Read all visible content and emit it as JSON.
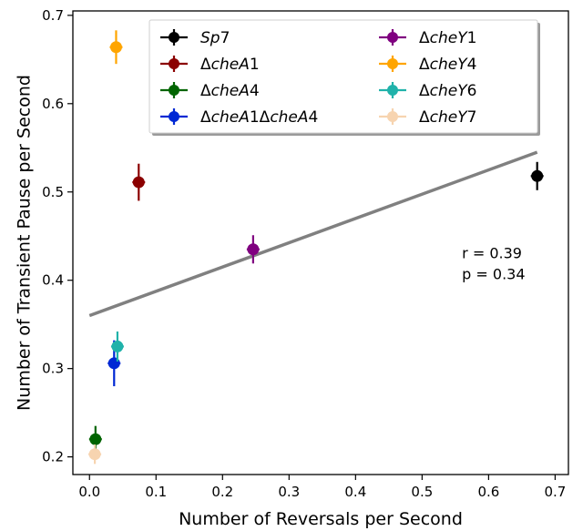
{
  "chart_data": {
    "type": "scatter",
    "xlabel": "Number of Reversals per Second",
    "ylabel": "Number of Transient Pause per Second",
    "xlim": [
      -0.025,
      0.72
    ],
    "ylim": [
      0.18,
      0.705
    ],
    "xticks": [
      0.0,
      0.1,
      0.2,
      0.3,
      0.4,
      0.5,
      0.6,
      0.7
    ],
    "xtick_labels": [
      "0.0",
      "0.1",
      "0.2",
      "0.3",
      "0.4",
      "0.5",
      "0.6",
      "0.7"
    ],
    "yticks": [
      0.2,
      0.3,
      0.4,
      0.5,
      0.6,
      0.7
    ],
    "ytick_labels": [
      "0.2",
      "0.3",
      "0.4",
      "0.5",
      "0.6",
      "0.7"
    ],
    "grid": false,
    "legend_position": "top",
    "series": [
      {
        "id": "sp7",
        "label_parts": [
          {
            "t": "Sp",
            "i": true
          },
          {
            "t": "7",
            "i": false
          }
        ],
        "color": "#000000",
        "x": 0.673,
        "y": 0.518,
        "xerr": 0.008,
        "yerr": 0.016
      },
      {
        "id": "chea1",
        "label_parts": [
          {
            "t": "Δ",
            "i": false
          },
          {
            "t": "cheA",
            "i": true
          },
          {
            "t": "1",
            "i": false
          }
        ],
        "color": "#8b0000",
        "x": 0.074,
        "y": 0.511,
        "xerr": 0.005,
        "yerr": 0.021
      },
      {
        "id": "chea4",
        "label_parts": [
          {
            "t": "Δ",
            "i": false
          },
          {
            "t": "cheA",
            "i": true
          },
          {
            "t": "4",
            "i": false
          }
        ],
        "color": "#006400",
        "x": 0.009,
        "y": 0.22,
        "xerr": 0.003,
        "yerr": 0.015
      },
      {
        "id": "chea1chea4",
        "label_parts": [
          {
            "t": "Δ",
            "i": false
          },
          {
            "t": "cheA",
            "i": true
          },
          {
            "t": "1Δ",
            "i": false
          },
          {
            "t": "cheA",
            "i": true
          },
          {
            "t": "4",
            "i": false
          }
        ],
        "color": "#0028d4",
        "x": 0.037,
        "y": 0.306,
        "xerr": 0.008,
        "yerr": 0.026
      },
      {
        "id": "chey1",
        "label_parts": [
          {
            "t": "Δ",
            "i": false
          },
          {
            "t": "cheY",
            "i": true
          },
          {
            "t": "1",
            "i": false
          }
        ],
        "color": "#800080",
        "x": 0.246,
        "y": 0.435,
        "xerr": 0.009,
        "yerr": 0.016
      },
      {
        "id": "chey4",
        "label_parts": [
          {
            "t": "Δ",
            "i": false
          },
          {
            "t": "cheY",
            "i": true
          },
          {
            "t": "4",
            "i": false
          }
        ],
        "color": "#ffa500",
        "x": 0.04,
        "y": 0.664,
        "xerr": 0.005,
        "yerr": 0.019
      },
      {
        "id": "chey6",
        "label_parts": [
          {
            "t": "Δ",
            "i": false
          },
          {
            "t": "cheY",
            "i": true
          },
          {
            "t": "6",
            "i": false
          }
        ],
        "color": "#20b2aa",
        "x": 0.042,
        "y": 0.325,
        "xerr": 0.004,
        "yerr": 0.017
      },
      {
        "id": "chey7",
        "label_parts": [
          {
            "t": "Δ",
            "i": false
          },
          {
            "t": "cheY",
            "i": true
          },
          {
            "t": "7",
            "i": false
          }
        ],
        "color": "#f7d4b0",
        "x": 0.008,
        "y": 0.203,
        "xerr": 0.004,
        "yerr": 0.011
      }
    ],
    "fit_line": {
      "x": [
        0.0,
        0.673
      ],
      "y": [
        0.36,
        0.545
      ],
      "color": "#808080"
    },
    "annotations": [
      {
        "text": "r = 0.39",
        "x": 0.56,
        "y": 0.425
      },
      {
        "text": "p = 0.34",
        "x": 0.56,
        "y": 0.401
      }
    ]
  }
}
